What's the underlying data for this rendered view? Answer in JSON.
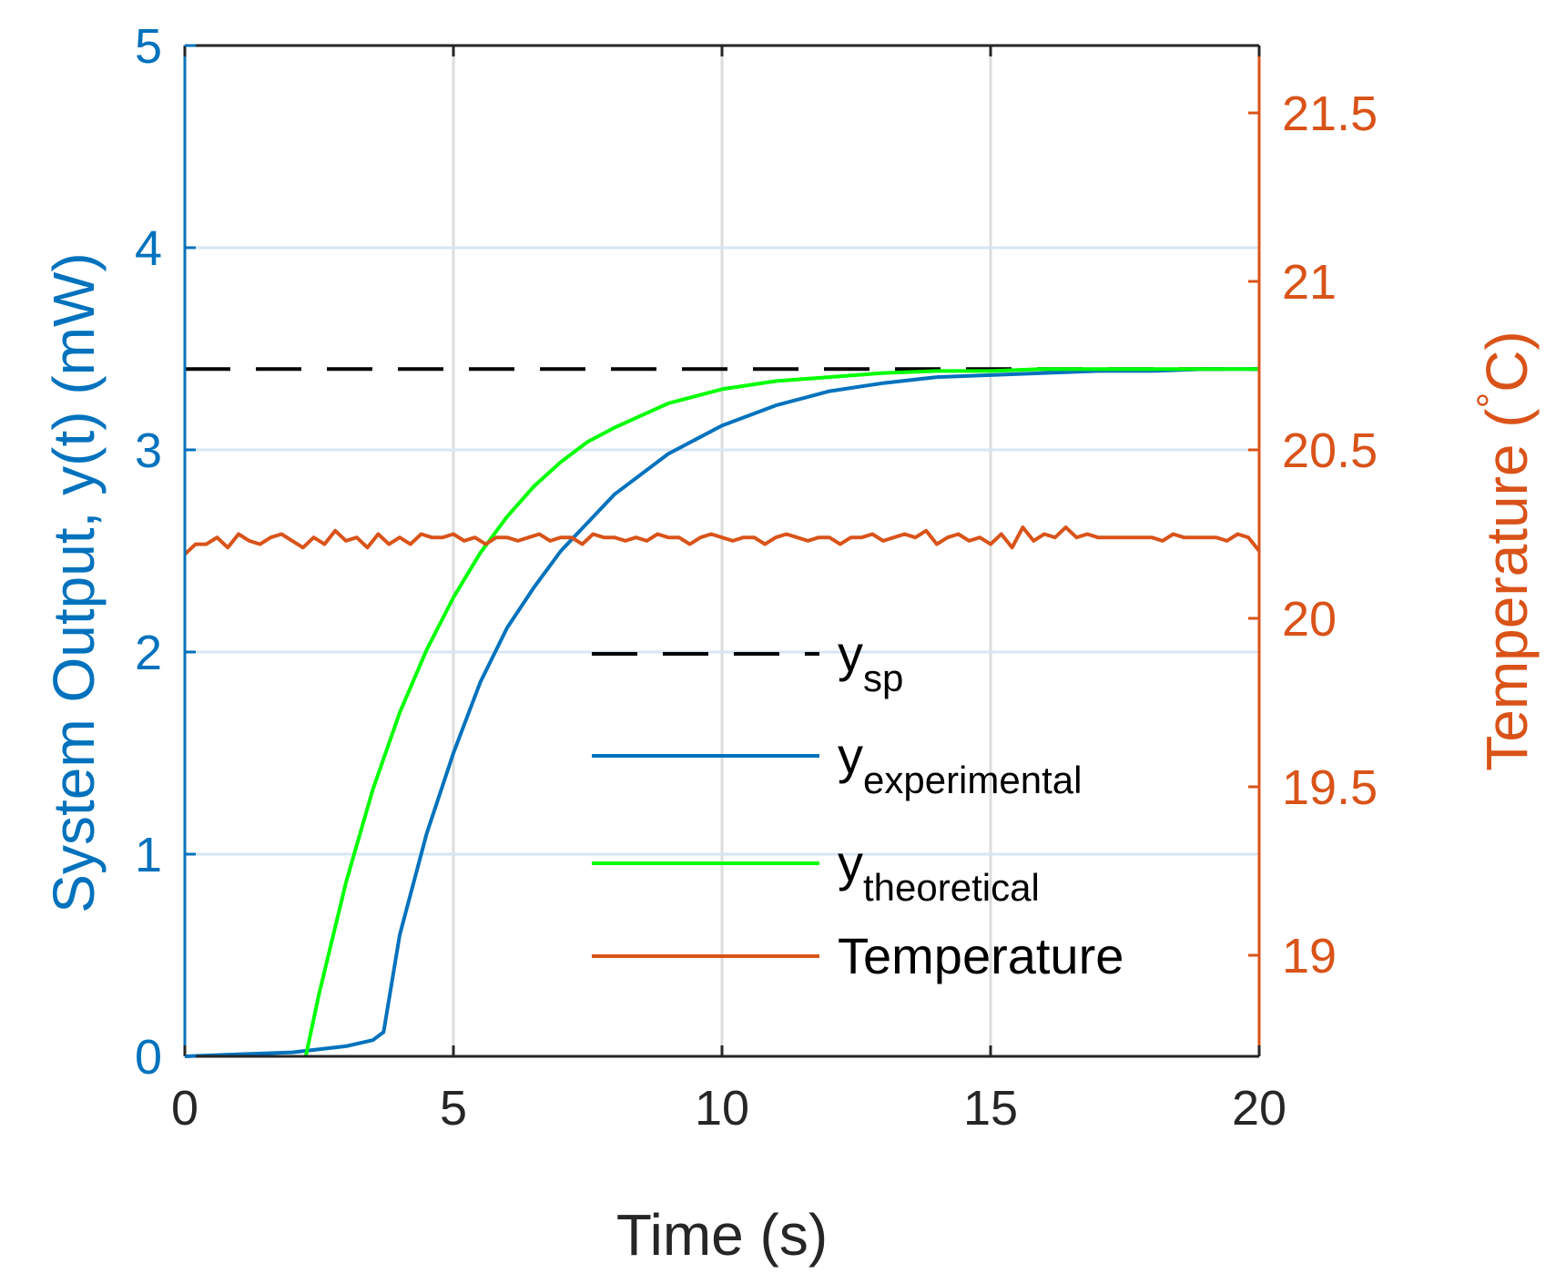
{
  "chart_data": {
    "type": "line",
    "xlabel": "Time (s)",
    "ylabel_left": "System Output, y(t) (mW)",
    "ylabel_right": "Temperature (°C)",
    "ylabel_right_parts": {
      "main": "Temperature (",
      "sup": "°",
      "unit": "C)"
    },
    "xlim": [
      0,
      20
    ],
    "ylim_left": [
      0,
      5
    ],
    "ylim_right": [
      18.7,
      21.7
    ],
    "xticks": [
      0,
      5,
      10,
      15,
      20
    ],
    "yticks_left": [
      0,
      1,
      2,
      3,
      4,
      5
    ],
    "yticks_right": [
      19,
      19.5,
      20,
      20.5,
      21,
      21.5
    ],
    "grid": true,
    "legend_position": "lower-center",
    "colors": {
      "left_axis": "#0072BD",
      "right_axis": "#D95319",
      "setpoint": "#000000",
      "experimental": "#0072BD",
      "theoretical": "#00FF00",
      "temperature": "#D95319",
      "grid": "#DCDCDC"
    },
    "series": [
      {
        "key": "setpoint",
        "name": "y_sp",
        "legend_main": "y",
        "legend_sub": "sp",
        "axis": "left",
        "style": "dashed",
        "x": [
          0,
          20
        ],
        "y": [
          3.4,
          3.4
        ]
      },
      {
        "key": "experimental",
        "name": "y_experimental",
        "legend_main": "y",
        "legend_sub": "experimental",
        "axis": "left",
        "style": "solid",
        "x": [
          0,
          1,
          2,
          3,
          3.5,
          3.7,
          4.0,
          4.5,
          5,
          5.5,
          6,
          6.5,
          7,
          8,
          9,
          10,
          11,
          12,
          13,
          14,
          15,
          16,
          17,
          18,
          19,
          20
        ],
        "y": [
          0,
          0.01,
          0.02,
          0.05,
          0.08,
          0.12,
          0.6,
          1.1,
          1.5,
          1.85,
          2.12,
          2.32,
          2.5,
          2.78,
          2.98,
          3.12,
          3.22,
          3.29,
          3.33,
          3.36,
          3.37,
          3.38,
          3.39,
          3.39,
          3.4,
          3.4
        ]
      },
      {
        "key": "theoretical",
        "name": "y_theoretical",
        "legend_main": "y",
        "legend_sub": "theoretical",
        "axis": "left",
        "style": "solid",
        "x": [
          2.25,
          2.5,
          3,
          3.5,
          4,
          4.5,
          5,
          5.5,
          6,
          6.5,
          7,
          7.5,
          8,
          9,
          10,
          11,
          12,
          13,
          14,
          15,
          16,
          17,
          18,
          19,
          20
        ],
        "y": [
          0,
          0.31,
          0.86,
          1.32,
          1.7,
          2.01,
          2.27,
          2.49,
          2.67,
          2.82,
          2.94,
          3.04,
          3.11,
          3.23,
          3.3,
          3.34,
          3.36,
          3.38,
          3.39,
          3.39,
          3.4,
          3.4,
          3.4,
          3.4,
          3.4
        ]
      },
      {
        "key": "temperature",
        "name": "Temperature",
        "legend_main": "Temperature",
        "legend_sub": "",
        "axis": "right",
        "style": "solid",
        "x": [
          0,
          0.2,
          0.4,
          0.6,
          0.8,
          1.0,
          1.2,
          1.4,
          1.6,
          1.8,
          2.0,
          2.2,
          2.4,
          2.6,
          2.8,
          3.0,
          3.2,
          3.4,
          3.6,
          3.8,
          4.0,
          4.2,
          4.4,
          4.6,
          4.8,
          5.0,
          5.2,
          5.4,
          5.6,
          5.8,
          6.0,
          6.2,
          6.4,
          6.6,
          6.8,
          7.0,
          7.2,
          7.4,
          7.6,
          7.8,
          8.0,
          8.2,
          8.4,
          8.6,
          8.8,
          9.0,
          9.2,
          9.4,
          9.6,
          9.8,
          10.0,
          10.2,
          10.4,
          10.6,
          10.8,
          11.0,
          11.2,
          11.4,
          11.6,
          11.8,
          12.0,
          12.2,
          12.4,
          12.6,
          12.8,
          13.0,
          13.2,
          13.4,
          13.6,
          13.8,
          14.0,
          14.2,
          14.4,
          14.6,
          14.8,
          15.0,
          15.2,
          15.4,
          15.6,
          15.8,
          16.0,
          16.2,
          16.4,
          16.6,
          16.8,
          17.0,
          17.2,
          17.4,
          17.6,
          17.8,
          18.0,
          18.2,
          18.4,
          18.6,
          18.8,
          19.0,
          19.2,
          19.4,
          19.6,
          19.8,
          20.0
        ],
        "y": [
          20.19,
          20.22,
          20.22,
          20.24,
          20.21,
          20.25,
          20.23,
          20.22,
          20.24,
          20.25,
          20.23,
          20.21,
          20.24,
          20.22,
          20.26,
          20.23,
          20.24,
          20.21,
          20.25,
          20.22,
          20.24,
          20.22,
          20.25,
          20.24,
          20.24,
          20.25,
          20.23,
          20.24,
          20.22,
          20.24,
          20.24,
          20.23,
          20.24,
          20.25,
          20.23,
          20.24,
          20.24,
          20.22,
          20.25,
          20.24,
          20.24,
          20.23,
          20.24,
          20.23,
          20.25,
          20.24,
          20.24,
          20.22,
          20.24,
          20.25,
          20.24,
          20.23,
          20.24,
          20.24,
          20.22,
          20.24,
          20.25,
          20.24,
          20.23,
          20.24,
          20.24,
          20.22,
          20.24,
          20.24,
          20.25,
          20.23,
          20.24,
          20.25,
          20.24,
          20.26,
          20.22,
          20.24,
          20.25,
          20.23,
          20.24,
          20.22,
          20.25,
          20.21,
          20.27,
          20.23,
          20.25,
          20.24,
          20.27,
          20.24,
          20.25,
          20.24,
          20.24,
          20.24,
          20.24,
          20.24,
          20.24,
          20.23,
          20.25,
          20.24,
          20.24,
          20.24,
          20.24,
          20.23,
          20.25,
          20.24,
          20.2
        ]
      }
    ]
  }
}
